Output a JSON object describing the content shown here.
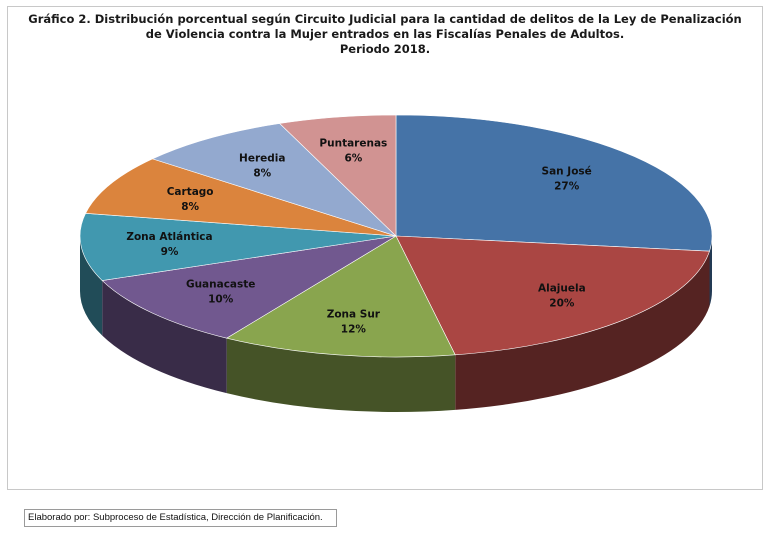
{
  "chart_data": {
    "type": "pie",
    "title_lines": [
      "Gráfico 2. Distribución porcentual según Circuito Judicial para la cantidad de delitos de la Ley de Penalización",
      "de Violencia contra la Mujer entrados en las Fiscalías Penales de Adultos.",
      "Periodo 2018."
    ],
    "value_suffix": "%",
    "slices": [
      {
        "label": "San José",
        "value": 27,
        "color": "#4573a7"
      },
      {
        "label": "Alajuela",
        "value": 20,
        "color": "#aa4643"
      },
      {
        "label": "Zona Sur",
        "value": 12,
        "color": "#89a54e"
      },
      {
        "label": "Guanacaste",
        "value": 10,
        "color": "#71588f"
      },
      {
        "label": "Zona Atlántica",
        "value": 9,
        "color": "#4198af"
      },
      {
        "label": "Cartago",
        "value": 8,
        "color": "#db843d"
      },
      {
        "label": "Heredia",
        "value": 8,
        "color": "#93a9cf"
      },
      {
        "label": "Puntarenas",
        "value": 6,
        "color": "#d19392"
      }
    ]
  },
  "footer": {
    "credit": "Elaborado por: Subproceso de Estadística, Dirección de Planificación."
  }
}
